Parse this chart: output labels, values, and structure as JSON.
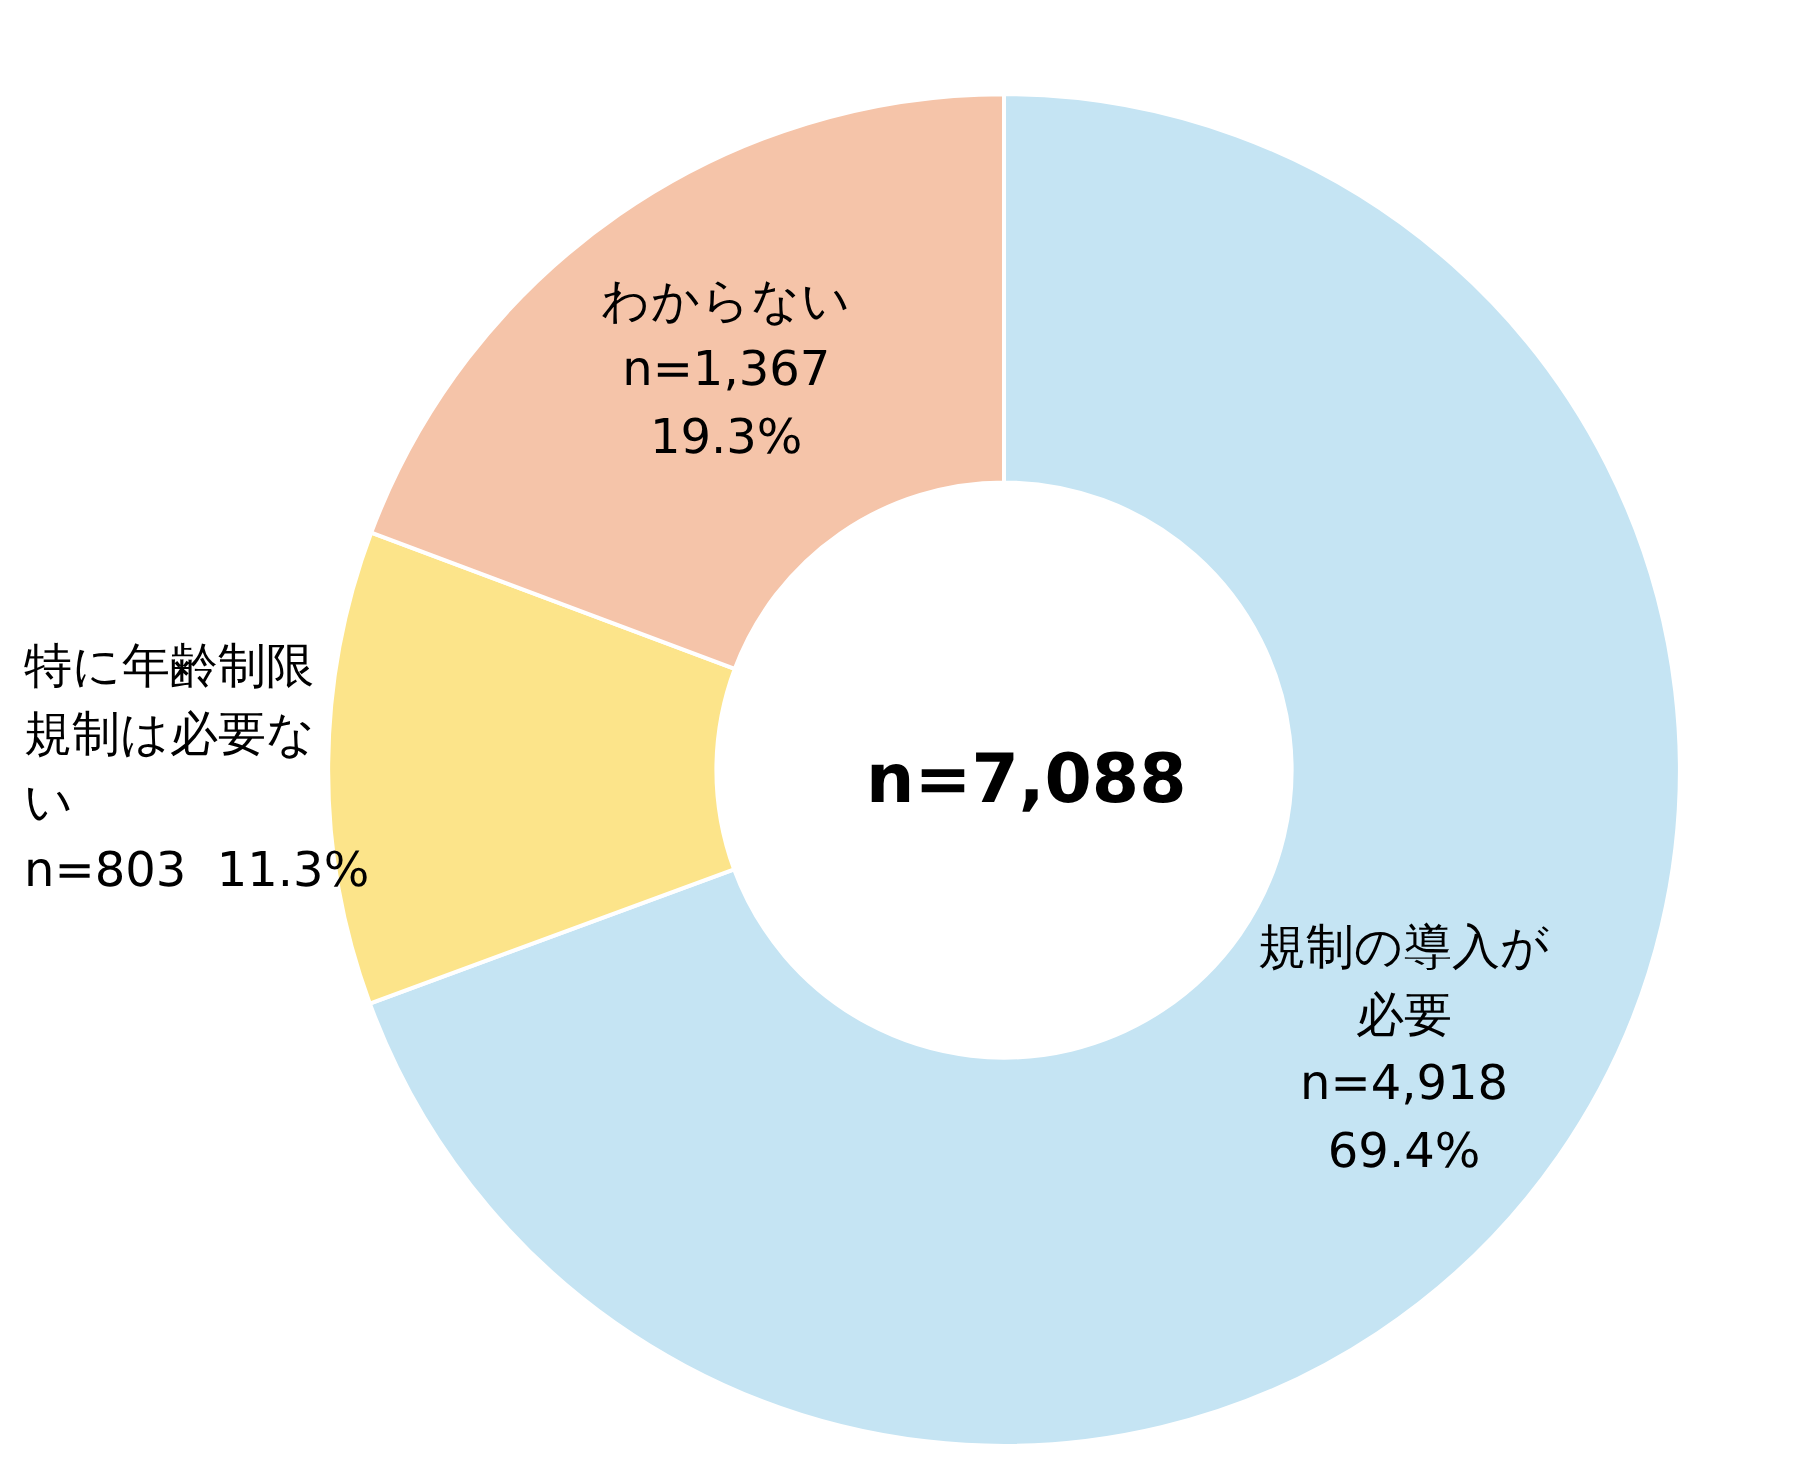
{
  "chart_data": {
    "type": "donut",
    "categories": [
      "規制の導入が必要",
      "特に年齢制限規制は必要ない",
      "わからない"
    ],
    "values": [
      4918,
      803,
      1367
    ],
    "value_labels": [
      "n=4,918\n69.4%",
      "n=803  11.3%",
      "n=1,367\n19.3%"
    ],
    "colors": [
      "#c5e4f3",
      "#fce48a",
      "#f5c4a9"
    ],
    "annotations": [
      "n=7,088"
    ],
    "legend": false
  }
}
